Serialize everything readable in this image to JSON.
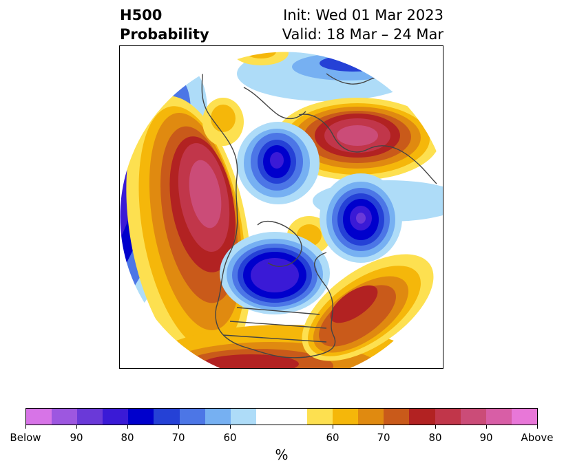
{
  "title": {
    "left_line1": "H500",
    "left_line2": "Probability",
    "right_line1": "Init: Wed 01 Mar 2023",
    "right_line2": "Valid: 18 Mar – 24 Mar"
  },
  "map": {
    "projection": "north-polar-stereographic",
    "field": "500 hPa height probability"
  },
  "colorbar": {
    "unit_label": "%",
    "colors": [
      "#d774e7",
      "#9d57e0",
      "#6a39d8",
      "#3a1ad6",
      "#0000cc",
      "#2541d6",
      "#4c76e6",
      "#76b0f2",
      "#aedcf8",
      "#ffffff",
      "#ffffff",
      "#fde050",
      "#f5b70a",
      "#e08a10",
      "#c95a1a",
      "#b22222",
      "#c1364a",
      "#cb4c78",
      "#d85ea6",
      "#e877d8"
    ],
    "tick_labels": [
      "Below",
      "90",
      "80",
      "70",
      "60",
      "60",
      "70",
      "80",
      "90",
      "Above"
    ]
  }
}
